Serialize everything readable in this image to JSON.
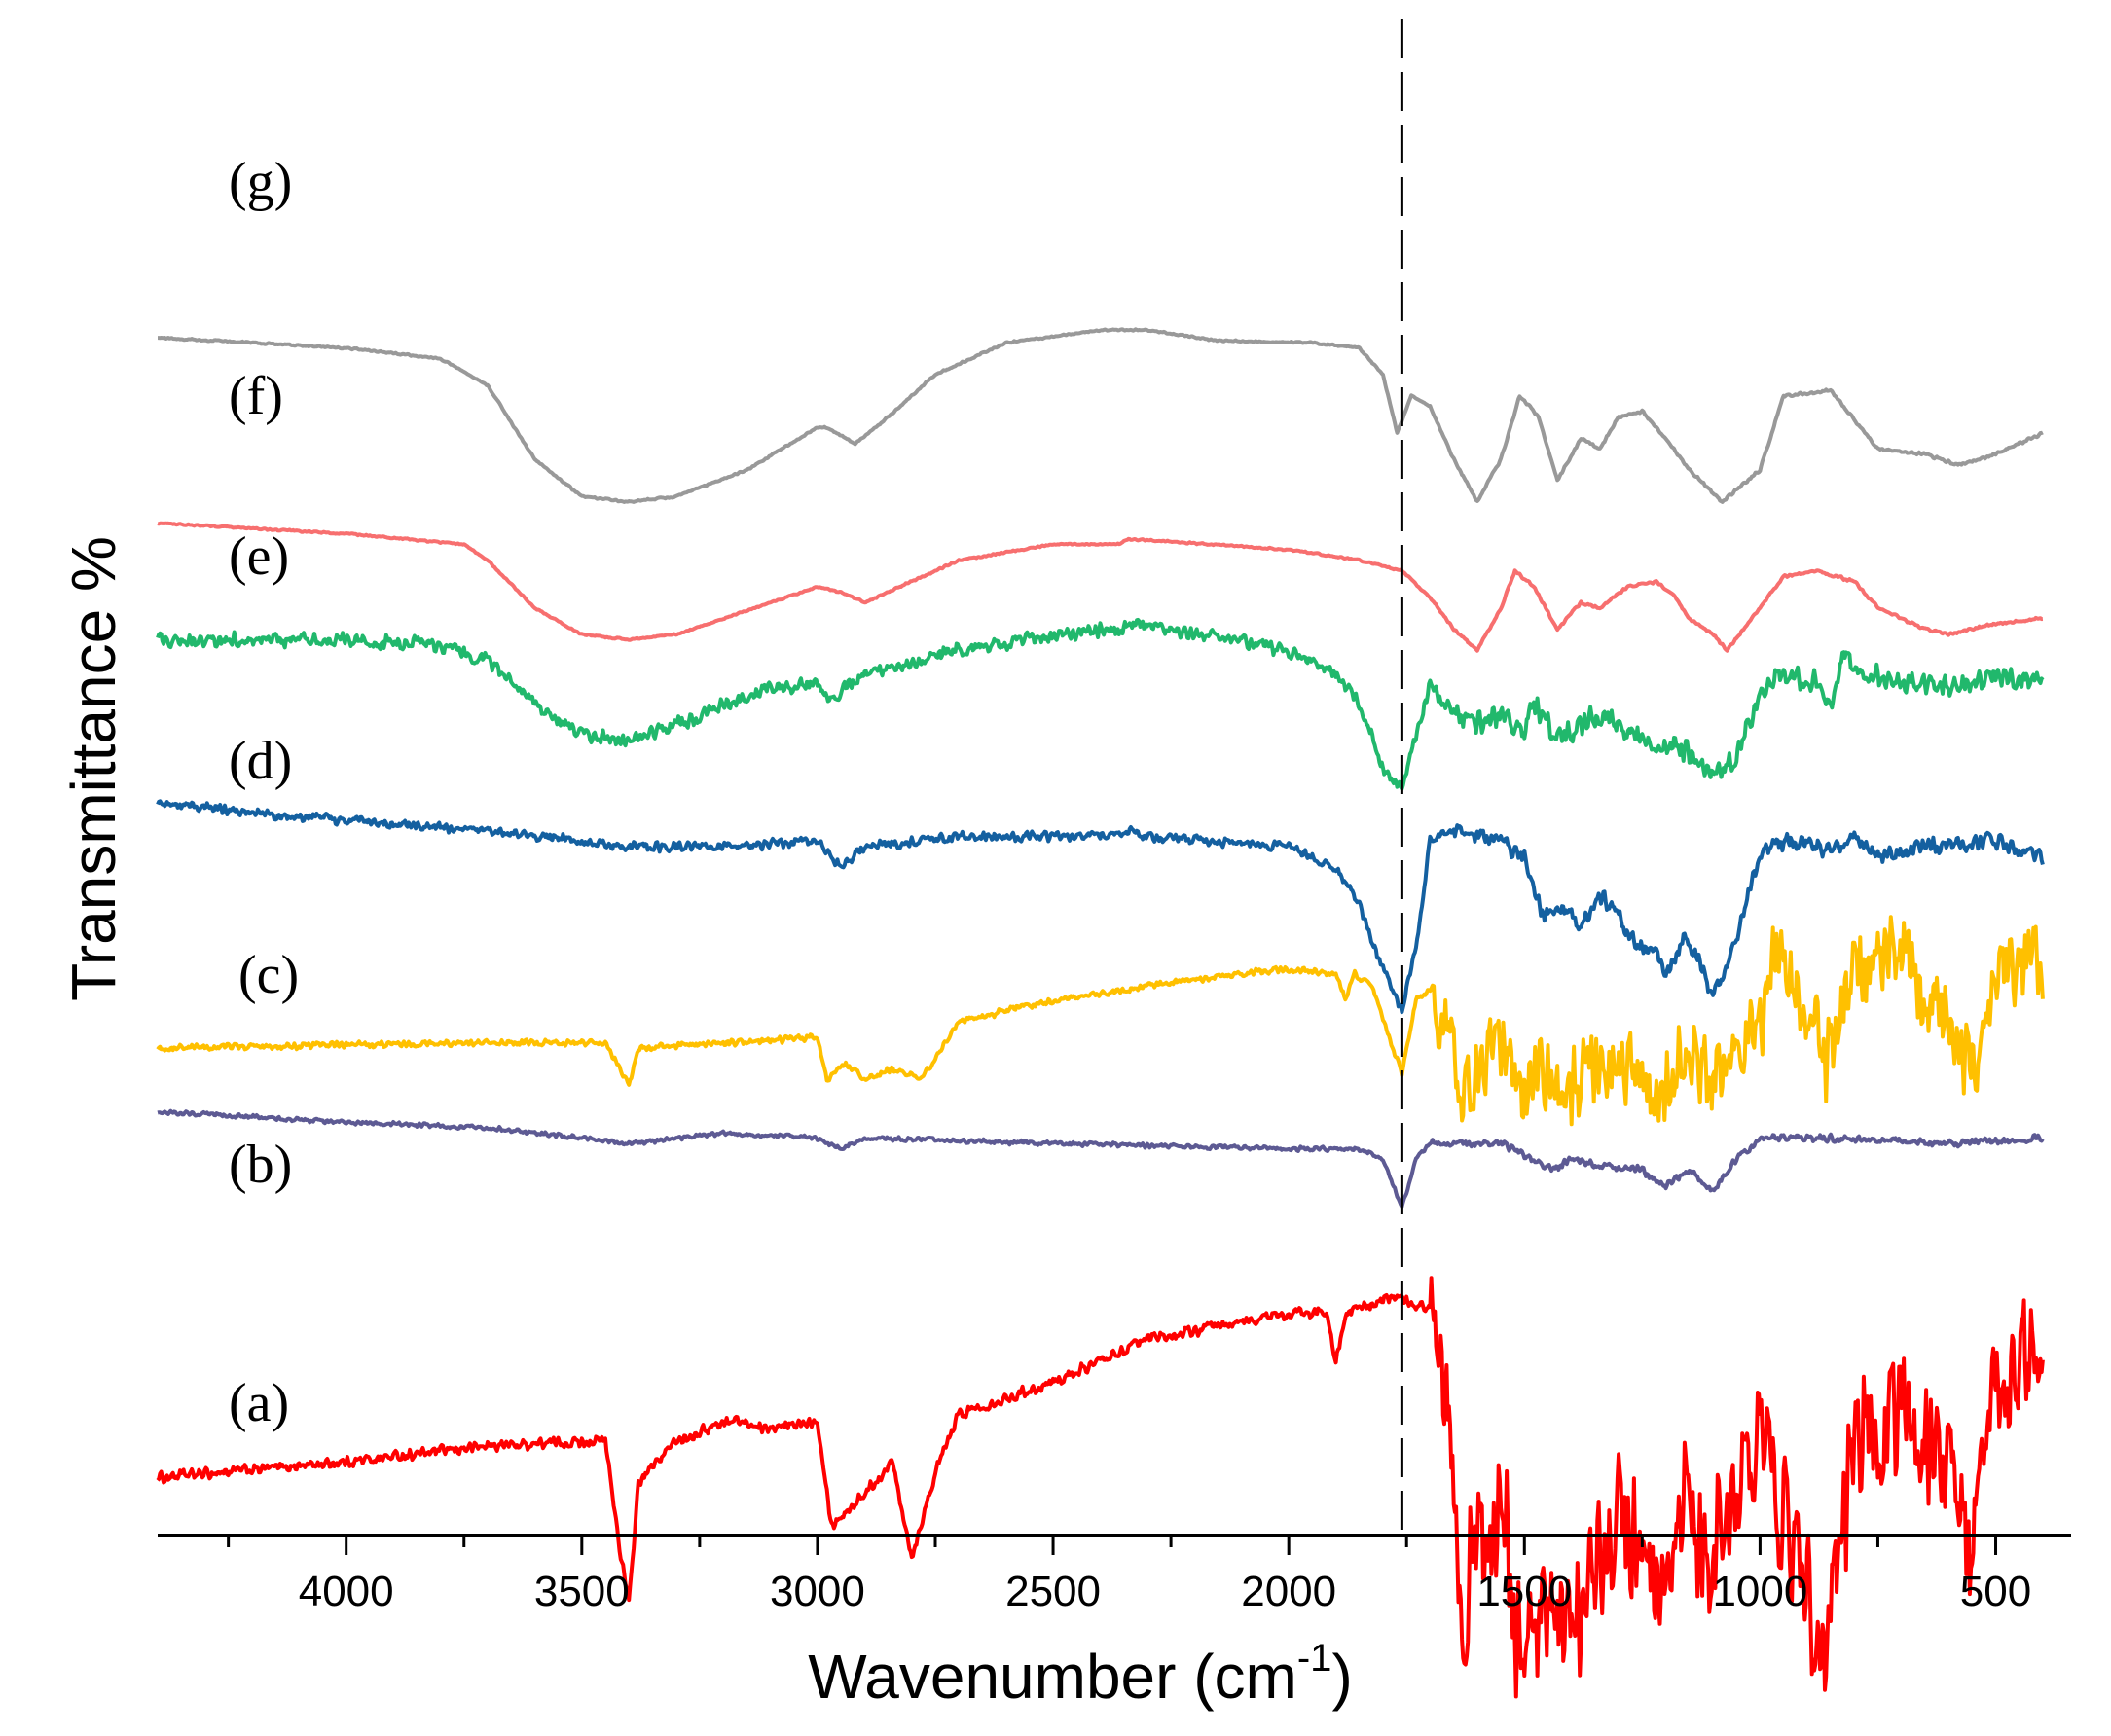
{
  "chart_data": {
    "type": "line",
    "title": "",
    "xlabel": "Wavenumber (cm",
    "xlabel_sup": "-1",
    "xlabel_close": ")",
    "ylabel": "Transmittance %",
    "xlim": [
      4400,
      340
    ],
    "x_ticks": [
      4000,
      3500,
      3000,
      2500,
      2000,
      1500,
      1000,
      500
    ],
    "reference_line_x": 1760,
    "series": [
      {
        "name": "(a)",
        "color": "#ff0000",
        "offset": 0,
        "noise": 0.75,
        "points": [
          [
            4400,
            -0.95
          ],
          [
            4000,
            -0.8
          ],
          [
            3700,
            -0.65
          ],
          [
            3450,
            -0.6
          ],
          [
            3420,
            -1.6
          ],
          [
            3400,
            -2.15
          ],
          [
            3380,
            -1.0
          ],
          [
            3300,
            -0.6
          ],
          [
            3180,
            -0.4
          ],
          [
            3100,
            -0.5
          ],
          [
            3000,
            -0.4
          ],
          [
            2970,
            -1.4
          ],
          [
            2900,
            -1.1
          ],
          [
            2840,
            -0.8
          ],
          [
            2800,
            -1.7
          ],
          [
            2750,
            -0.9
          ],
          [
            2700,
            -0.35
          ],
          [
            2500,
            -0.05
          ],
          [
            2300,
            0.35
          ],
          [
            2000,
            0.6
          ],
          [
            1920,
            0.6
          ],
          [
            1900,
            0.15
          ],
          [
            1880,
            0.6
          ],
          [
            1780,
            0.75
          ],
          [
            1700,
            0.65
          ],
          [
            1660,
            0.0
          ],
          [
            1630,
            -2.5
          ],
          [
            1600,
            -1.3
          ],
          [
            1570,
            -2.0
          ],
          [
            1550,
            -1.0
          ],
          [
            1520,
            -2.4
          ],
          [
            1450,
            -2.3
          ],
          [
            1400,
            -2.4
          ],
          [
            1350,
            -1.9
          ],
          [
            1300,
            -1.3
          ],
          [
            1260,
            -1.7
          ],
          [
            1200,
            -2.4
          ],
          [
            1160,
            -1.0
          ],
          [
            1120,
            -1.9
          ],
          [
            1060,
            -1.2
          ],
          [
            1000,
            -0.4
          ],
          [
            950,
            -1.3
          ],
          [
            870,
            -2.5
          ],
          [
            820,
            -1.2
          ],
          [
            780,
            -0.5
          ],
          [
            700,
            -0.3
          ],
          [
            640,
            -0.7
          ],
          [
            580,
            -0.8
          ],
          [
            550,
            -1.9
          ],
          [
            520,
            -0.6
          ],
          [
            450,
            0.1
          ],
          [
            400,
            0.2
          ]
        ]
      },
      {
        "name": "(b)",
        "color": "#5d5a93",
        "offset": 1.55,
        "noise": 0.04,
        "points": [
          [
            4400,
            0.95
          ],
          [
            4000,
            0.85
          ],
          [
            3700,
            0.8
          ],
          [
            3400,
            0.65
          ],
          [
            3200,
            0.75
          ],
          [
            3000,
            0.7
          ],
          [
            2950,
            0.6
          ],
          [
            2900,
            0.7
          ],
          [
            2500,
            0.65
          ],
          [
            2000,
            0.6
          ],
          [
            1850,
            0.6
          ],
          [
            1800,
            0.5
          ],
          [
            1760,
            0.05
          ],
          [
            1730,
            0.5
          ],
          [
            1700,
            0.65
          ],
          [
            1550,
            0.65
          ],
          [
            1500,
            0.55
          ],
          [
            1440,
            0.4
          ],
          [
            1400,
            0.5
          ],
          [
            1350,
            0.45
          ],
          [
            1250,
            0.4
          ],
          [
            1200,
            0.25
          ],
          [
            1150,
            0.4
          ],
          [
            1100,
            0.2
          ],
          [
            1050,
            0.5
          ],
          [
            1000,
            0.7
          ],
          [
            800,
            0.7
          ],
          [
            600,
            0.65
          ],
          [
            400,
            0.7
          ]
        ]
      },
      {
        "name": "(c)",
        "color": "#ffc000",
        "offset": 2.85,
        "noise": 0.45,
        "points": [
          [
            4400,
            0.25
          ],
          [
            4000,
            0.28
          ],
          [
            3700,
            0.3
          ],
          [
            3450,
            0.3
          ],
          [
            3400,
            -0.1
          ],
          [
            3380,
            0.25
          ],
          [
            3000,
            0.35
          ],
          [
            2980,
            -0.05
          ],
          [
            2940,
            0.1
          ],
          [
            2900,
            -0.05
          ],
          [
            2840,
            0.05
          ],
          [
            2780,
            -0.05
          ],
          [
            2700,
            0.5
          ],
          [
            2500,
            0.7
          ],
          [
            2200,
            0.9
          ],
          [
            2000,
            1.0
          ],
          [
            1900,
            0.95
          ],
          [
            1880,
            0.7
          ],
          [
            1860,
            0.95
          ],
          [
            1820,
            0.8
          ],
          [
            1760,
            0.0
          ],
          [
            1730,
            0.7
          ],
          [
            1700,
            0.8
          ],
          [
            1670,
            0.6
          ],
          [
            1640,
            -0.1
          ],
          [
            1600,
            0.0
          ],
          [
            1560,
            0.25
          ],
          [
            1520,
            -0.1
          ],
          [
            1450,
            0.0
          ],
          [
            1400,
            -0.1
          ],
          [
            1350,
            0.0
          ],
          [
            1300,
            0.1
          ],
          [
            1250,
            0.0
          ],
          [
            1200,
            -0.15
          ],
          [
            1150,
            0.2
          ],
          [
            1100,
            0.0
          ],
          [
            1000,
            0.4
          ],
          [
            970,
            1.1
          ],
          [
            900,
            0.6
          ],
          [
            860,
            0.1
          ],
          [
            800,
            0.9
          ],
          [
            700,
            1.1
          ],
          [
            600,
            0.5
          ],
          [
            550,
            0.0
          ],
          [
            500,
            0.9
          ],
          [
            420,
            1.1
          ],
          [
            400,
            1.05
          ]
        ]
      },
      {
        "name": "(d)",
        "color": "#1460a0",
        "offset": 4.45,
        "noise": 0.09,
        "points": [
          [
            4400,
            0.95
          ],
          [
            4000,
            0.8
          ],
          [
            3700,
            0.7
          ],
          [
            3400,
            0.55
          ],
          [
            3200,
            0.55
          ],
          [
            3000,
            0.6
          ],
          [
            2970,
            0.45
          ],
          [
            2950,
            0.35
          ],
          [
            2900,
            0.55
          ],
          [
            2700,
            0.65
          ],
          [
            2360,
            0.65
          ],
          [
            2340,
            0.7
          ],
          [
            2320,
            0.65
          ],
          [
            2000,
            0.55
          ],
          [
            1900,
            0.35
          ],
          [
            1850,
            0.0
          ],
          [
            1800,
            -0.6
          ],
          [
            1760,
            -1.0
          ],
          [
            1730,
            -0.4
          ],
          [
            1700,
            0.6
          ],
          [
            1650,
            0.7
          ],
          [
            1550,
            0.6
          ],
          [
            1500,
            0.45
          ],
          [
            1460,
            -0.1
          ],
          [
            1420,
            0.0
          ],
          [
            1380,
            -0.2
          ],
          [
            1340,
            0.1
          ],
          [
            1300,
            -0.1
          ],
          [
            1260,
            -0.4
          ],
          [
            1220,
            -0.4
          ],
          [
            1200,
            -0.7
          ],
          [
            1160,
            -0.3
          ],
          [
            1120,
            -0.6
          ],
          [
            1100,
            -0.9
          ],
          [
            1050,
            -0.3
          ],
          [
            1000,
            0.5
          ],
          [
            950,
            0.6
          ],
          [
            850,
            0.5
          ],
          [
            800,
            0.65
          ],
          [
            750,
            0.45
          ],
          [
            650,
            0.55
          ],
          [
            500,
            0.6
          ],
          [
            400,
            0.45
          ]
        ]
      },
      {
        "name": "(e)",
        "color": "#21b86c",
        "offset": 6.05,
        "noise": 0.13,
        "points": [
          [
            4400,
            0.9
          ],
          [
            4000,
            0.9
          ],
          [
            3800,
            0.85
          ],
          [
            3700,
            0.7
          ],
          [
            3600,
            0.3
          ],
          [
            3500,
            0.0
          ],
          [
            3400,
            -0.05
          ],
          [
            3300,
            0.1
          ],
          [
            3100,
            0.45
          ],
          [
            3000,
            0.5
          ],
          [
            2970,
            0.35
          ],
          [
            2900,
            0.55
          ],
          [
            2700,
            0.8
          ],
          [
            2500,
            0.95
          ],
          [
            2360,
            1.0
          ],
          [
            2340,
            1.05
          ],
          [
            2200,
            0.95
          ],
          [
            2000,
            0.8
          ],
          [
            1900,
            0.6
          ],
          [
            1850,
            0.3
          ],
          [
            1800,
            -0.3
          ],
          [
            1760,
            -0.5
          ],
          [
            1730,
            0.0
          ],
          [
            1700,
            0.5
          ],
          [
            1650,
            0.2
          ],
          [
            1600,
            0.1
          ],
          [
            1550,
            0.2
          ],
          [
            1500,
            0.0
          ],
          [
            1480,
            0.3
          ],
          [
            1440,
            0.05
          ],
          [
            1400,
            0.0
          ],
          [
            1350,
            0.2
          ],
          [
            1300,
            0.1
          ],
          [
            1250,
            -0.05
          ],
          [
            1200,
            -0.1
          ],
          [
            1150,
            -0.15
          ],
          [
            1100,
            -0.4
          ],
          [
            1050,
            -0.2
          ],
          [
            1000,
            0.4
          ],
          [
            950,
            0.6
          ],
          [
            880,
            0.5
          ],
          [
            850,
            0.3
          ],
          [
            820,
            0.8
          ],
          [
            780,
            0.6
          ],
          [
            700,
            0.5
          ],
          [
            600,
            0.45
          ],
          [
            500,
            0.55
          ],
          [
            400,
            0.55
          ]
        ]
      },
      {
        "name": "(f)",
        "color": "#f76f6f",
        "offset": 7.15,
        "noise": 0.015,
        "points": [
          [
            4400,
            0.9
          ],
          [
            4000,
            0.8
          ],
          [
            3750,
            0.7
          ],
          [
            3700,
            0.55
          ],
          [
            3600,
            0.1
          ],
          [
            3500,
            -0.15
          ],
          [
            3400,
            -0.2
          ],
          [
            3300,
            -0.15
          ],
          [
            3100,
            0.15
          ],
          [
            3000,
            0.3
          ],
          [
            2950,
            0.25
          ],
          [
            2900,
            0.15
          ],
          [
            2800,
            0.35
          ],
          [
            2700,
            0.55
          ],
          [
            2500,
            0.7
          ],
          [
            2360,
            0.7
          ],
          [
            2340,
            0.75
          ],
          [
            2000,
            0.65
          ],
          [
            1850,
            0.55
          ],
          [
            1760,
            0.45
          ],
          [
            1700,
            0.2
          ],
          [
            1650,
            -0.1
          ],
          [
            1600,
            -0.3
          ],
          [
            1550,
            0.1
          ],
          [
            1520,
            0.45
          ],
          [
            1480,
            0.3
          ],
          [
            1430,
            -0.1
          ],
          [
            1380,
            0.15
          ],
          [
            1340,
            0.1
          ],
          [
            1280,
            0.3
          ],
          [
            1220,
            0.35
          ],
          [
            1180,
            0.2
          ],
          [
            1150,
            0.0
          ],
          [
            1100,
            -0.15
          ],
          [
            1070,
            -0.3
          ],
          [
            1000,
            0.1
          ],
          [
            950,
            0.4
          ],
          [
            880,
            0.45
          ],
          [
            800,
            0.35
          ],
          [
            750,
            0.1
          ],
          [
            650,
            -0.1
          ],
          [
            600,
            -0.15
          ],
          [
            500,
            -0.05
          ],
          [
            400,
            0.0
          ]
        ]
      },
      {
        "name": "(g)",
        "color": "#999999",
        "offset": 8.15,
        "noise": 0.015,
        "points": [
          [
            4400,
            1.65
          ],
          [
            4000,
            1.55
          ],
          [
            3800,
            1.45
          ],
          [
            3700,
            1.2
          ],
          [
            3600,
            0.5
          ],
          [
            3500,
            0.15
          ],
          [
            3400,
            0.1
          ],
          [
            3300,
            0.15
          ],
          [
            3150,
            0.4
          ],
          [
            3000,
            0.8
          ],
          [
            2980,
            0.8
          ],
          [
            2920,
            0.65
          ],
          [
            2850,
            0.9
          ],
          [
            2750,
            1.3
          ],
          [
            2600,
            1.6
          ],
          [
            2400,
            1.72
          ],
          [
            2300,
            1.72
          ],
          [
            2150,
            1.62
          ],
          [
            1950,
            1.6
          ],
          [
            1850,
            1.55
          ],
          [
            1800,
            1.3
          ],
          [
            1770,
            0.75
          ],
          [
            1740,
            1.1
          ],
          [
            1700,
            1.0
          ],
          [
            1650,
            0.5
          ],
          [
            1600,
            0.1
          ],
          [
            1550,
            0.5
          ],
          [
            1510,
            1.1
          ],
          [
            1470,
            0.9
          ],
          [
            1430,
            0.3
          ],
          [
            1380,
            0.7
          ],
          [
            1340,
            0.6
          ],
          [
            1300,
            0.9
          ],
          [
            1250,
            0.95
          ],
          [
            1200,
            0.7
          ],
          [
            1150,
            0.4
          ],
          [
            1080,
            0.1
          ],
          [
            1000,
            0.4
          ],
          [
            950,
            1.1
          ],
          [
            850,
            1.15
          ],
          [
            750,
            0.6
          ],
          [
            650,
            0.55
          ],
          [
            580,
            0.45
          ],
          [
            500,
            0.55
          ],
          [
            400,
            0.75
          ]
        ]
      }
    ]
  }
}
